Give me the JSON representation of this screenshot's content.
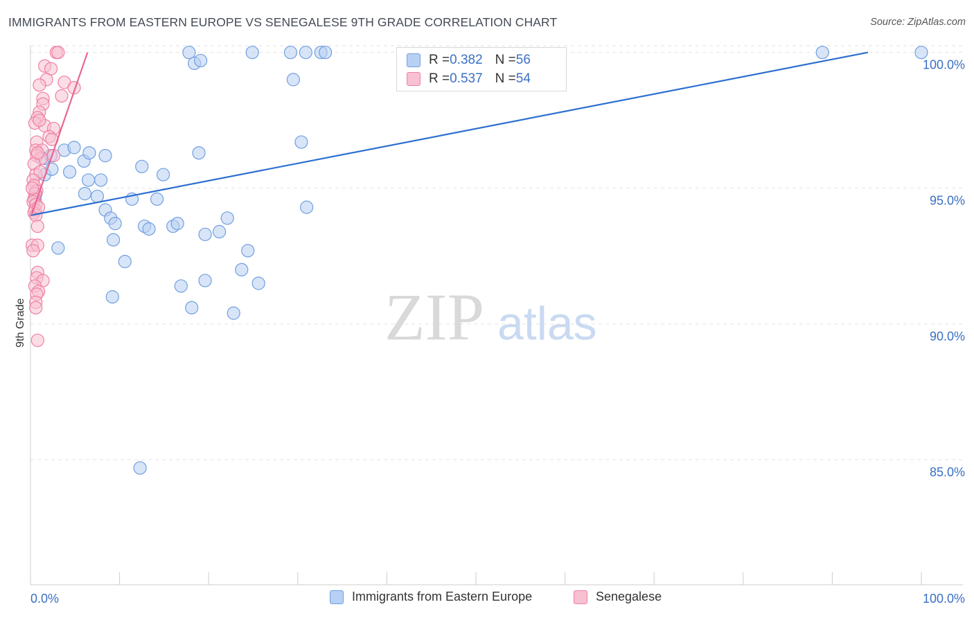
{
  "title": "IMMIGRANTS FROM EASTERN EUROPE VS SENEGALESE 9TH GRADE CORRELATION CHART",
  "source": "Source: ZipAtlas.com",
  "watermark": {
    "zip": "ZIP",
    "atlas": "atlas"
  },
  "colors": {
    "blue": "#6f9fe0",
    "blue_fill": "#b8d0f3",
    "blue_line": "#2b6fd1",
    "pink": "#ef7fa2",
    "pink_fill": "#f7c1d2",
    "pink_line": "#e8678f",
    "grid": "#e2e2e2",
    "tick_label": "#3a6fc4"
  },
  "legend": {
    "rows": [
      {
        "r_label": "R = ",
        "r_value": "0.382",
        "n_label": "N = ",
        "n_value": "56"
      },
      {
        "r_label": "R = ",
        "r_value": "0.537",
        "n_label": "N = ",
        "n_value": "54"
      }
    ]
  },
  "chart_data": {
    "type": "scatter",
    "title": "IMMIGRANTS FROM EASTERN EUROPE VS SENEGALESE 9TH GRADE CORRELATION CHART",
    "xlabel": "",
    "ylabel": "9th Grade",
    "xlim": [
      0,
      100
    ],
    "ylim": [
      80.4,
      100.4
    ],
    "x_tick_labels": [
      {
        "value": 0,
        "label": "0.0%"
      },
      {
        "value": 100,
        "label": "100.0%"
      }
    ],
    "y_ticks": [
      {
        "value": 100,
        "label": "100.0%"
      },
      {
        "value": 95,
        "label": "95.0%"
      },
      {
        "value": 90,
        "label": "90.0%"
      },
      {
        "value": 85,
        "label": "85.0%"
      }
    ],
    "legend_position": "top-center",
    "series": [
      {
        "name": "Immigrants from Eastern Europe",
        "color": "blue",
        "R": 0.382,
        "N": 56,
        "trend": {
          "x": [
            0,
            94
          ],
          "y": [
            94.0,
            100.0
          ]
        },
        "points": [
          [
            0.5,
            94.6
          ],
          [
            0.6,
            94.8
          ],
          [
            1.5,
            96.1
          ],
          [
            1.6,
            95.5
          ],
          [
            2.3,
            96.2
          ],
          [
            2.4,
            95.7
          ],
          [
            3.1,
            92.8
          ],
          [
            3.8,
            96.4
          ],
          [
            4.4,
            95.6
          ],
          [
            4.9,
            96.5
          ],
          [
            6.0,
            96.0
          ],
          [
            6.6,
            96.3
          ],
          [
            6.1,
            94.8
          ],
          [
            6.5,
            95.3
          ],
          [
            7.5,
            94.7
          ],
          [
            8.4,
            96.2
          ],
          [
            7.9,
            95.3
          ],
          [
            8.4,
            94.2
          ],
          [
            9.3,
            93.1
          ],
          [
            9.0,
            93.9
          ],
          [
            9.5,
            93.7
          ],
          [
            10.6,
            92.3
          ],
          [
            9.2,
            91.0
          ],
          [
            11.4,
            94.6
          ],
          [
            12.5,
            95.8
          ],
          [
            12.8,
            93.6
          ],
          [
            13.3,
            93.5
          ],
          [
            14.2,
            94.6
          ],
          [
            14.9,
            95.5
          ],
          [
            16.0,
            93.6
          ],
          [
            16.5,
            93.7
          ],
          [
            16.9,
            91.4
          ],
          [
            18.1,
            90.6
          ],
          [
            18.9,
            96.3
          ],
          [
            19.6,
            93.3
          ],
          [
            19.6,
            91.6
          ],
          [
            21.2,
            93.4
          ],
          [
            22.1,
            93.9
          ],
          [
            22.8,
            90.4
          ],
          [
            23.7,
            92.0
          ],
          [
            24.4,
            92.7
          ],
          [
            25.6,
            91.5
          ],
          [
            30.4,
            96.7
          ],
          [
            31.0,
            94.3
          ],
          [
            12.3,
            84.7
          ],
          [
            17.8,
            100.0
          ],
          [
            18.4,
            99.6
          ],
          [
            19.1,
            99.7
          ],
          [
            24.9,
            100.0
          ],
          [
            29.2,
            100.0
          ],
          [
            30.9,
            100.0
          ],
          [
            32.6,
            100.0
          ],
          [
            33.1,
            100.0
          ],
          [
            29.5,
            99.0
          ],
          [
            88.9,
            100.0
          ],
          [
            100.0,
            100.0
          ]
        ]
      },
      {
        "name": "Senegalese",
        "color": "pink",
        "R": 0.537,
        "N": 54,
        "trend": {
          "x": [
            0.1,
            6.4
          ],
          "y": [
            94.0,
            100.0
          ]
        },
        "points": [
          [
            2.9,
            100.0
          ],
          [
            3.1,
            100.0
          ],
          [
            1.6,
            99.5
          ],
          [
            2.3,
            99.4
          ],
          [
            1.8,
            99.0
          ],
          [
            3.8,
            98.9
          ],
          [
            1.0,
            98.8
          ],
          [
            4.9,
            98.7
          ],
          [
            1.4,
            98.3
          ],
          [
            3.5,
            98.4
          ],
          [
            1.4,
            98.1
          ],
          [
            1.0,
            97.8
          ],
          [
            0.8,
            97.6
          ],
          [
            0.5,
            97.4
          ],
          [
            1.6,
            97.3
          ],
          [
            2.6,
            97.2
          ],
          [
            2.1,
            96.9
          ],
          [
            2.4,
            96.8
          ],
          [
            0.7,
            96.7
          ],
          [
            0.6,
            96.4
          ],
          [
            1.3,
            96.4
          ],
          [
            0.7,
            96.2
          ],
          [
            1.2,
            96.1
          ],
          [
            2.6,
            96.2
          ],
          [
            0.4,
            95.9
          ],
          [
            0.6,
            95.5
          ],
          [
            1.1,
            95.6
          ],
          [
            0.3,
            95.3
          ],
          [
            0.4,
            95.1
          ],
          [
            0.7,
            94.9
          ],
          [
            0.5,
            94.8
          ],
          [
            0.4,
            94.6
          ],
          [
            0.3,
            94.5
          ],
          [
            0.6,
            94.4
          ],
          [
            0.5,
            94.2
          ],
          [
            0.4,
            94.1
          ],
          [
            0.6,
            94.0
          ],
          [
            0.8,
            93.6
          ],
          [
            0.2,
            92.9
          ],
          [
            0.8,
            92.9
          ],
          [
            0.3,
            92.7
          ],
          [
            0.8,
            91.9
          ],
          [
            0.7,
            91.7
          ],
          [
            1.4,
            91.6
          ],
          [
            0.5,
            91.4
          ],
          [
            0.9,
            91.2
          ],
          [
            0.7,
            91.1
          ],
          [
            0.6,
            90.8
          ],
          [
            0.6,
            90.6
          ],
          [
            0.8,
            89.4
          ],
          [
            0.2,
            95.0
          ],
          [
            0.9,
            94.3
          ],
          [
            1.0,
            97.5
          ],
          [
            0.8,
            96.3
          ]
        ]
      }
    ]
  }
}
